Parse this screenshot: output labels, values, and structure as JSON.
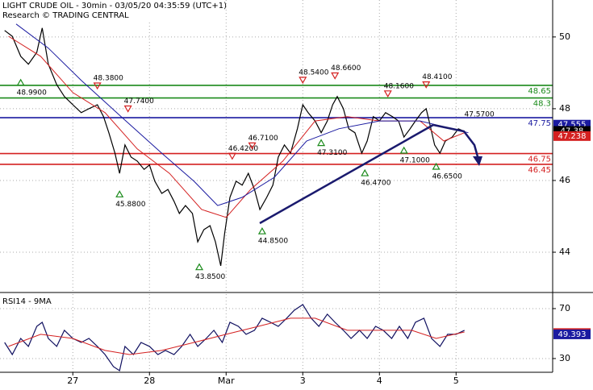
{
  "chart_data": [
    {
      "type": "line",
      "title": "LIGHT CRUDE OIL - 30min - 03/05/20 04:35:59 (UTC+1)",
      "subtitle": "Research © TRADING CENTRAL",
      "xlim": [
        -0.95,
        6.26
      ],
      "xticks": [
        {
          "value": 0,
          "label": "27"
        },
        {
          "value": 1,
          "label": "28"
        },
        {
          "value": 2,
          "label": "Mar"
        },
        {
          "value": 3,
          "label": "3"
        },
        {
          "value": 4,
          "label": "4"
        },
        {
          "value": 5,
          "label": "5"
        }
      ],
      "ylim": [
        42.9,
        51.03
      ],
      "yticks": [
        44,
        46,
        48,
        50
      ],
      "grid": true,
      "series": [
        {
          "color": "#000000",
          "x": [
            -0.89,
            -0.79,
            -0.68,
            -0.58,
            -0.47,
            -0.4,
            -0.32,
            -0.21,
            -0.11,
            0,
            0.11,
            0.21,
            0.32,
            0.4,
            0.47,
            0.55,
            0.61,
            0.68,
            0.76,
            0.84,
            0.93,
            1.0,
            1.07,
            1.16,
            1.24,
            1.32,
            1.39,
            1.47,
            1.56,
            1.63,
            1.71,
            1.79,
            1.86,
            1.93,
            1.98,
            2.05,
            2.13,
            2.21,
            2.29,
            2.37,
            2.44,
            2.53,
            2.61,
            2.68,
            2.76,
            2.84,
            2.93,
            3.0,
            3.07,
            3.16,
            3.24,
            3.32,
            3.39,
            3.45,
            3.53,
            3.6,
            3.68,
            3.77,
            3.84,
            3.92,
            4.0,
            4.08,
            4.17,
            4.25,
            4.32,
            4.4,
            4.47,
            4.55,
            4.61,
            4.66,
            4.72,
            4.79,
            4.86,
            4.95,
            5.03,
            5.11
          ],
          "values": [
            50.18,
            50.02,
            49.46,
            49.24,
            49.57,
            50.25,
            49.24,
            48.67,
            48.34,
            48.11,
            47.89,
            48.0,
            48.11,
            47.78,
            47.33,
            46.76,
            46.2,
            46.99,
            46.65,
            46.54,
            46.31,
            46.43,
            45.98,
            45.64,
            45.75,
            45.42,
            45.08,
            45.3,
            45.08,
            44.29,
            44.63,
            44.74,
            44.29,
            43.62,
            44.52,
            45.53,
            45.98,
            45.87,
            46.2,
            45.75,
            45.19,
            45.53,
            45.87,
            46.65,
            46.99,
            46.76,
            47.44,
            48.11,
            47.89,
            47.66,
            47.33,
            47.66,
            48.11,
            48.34,
            48.0,
            47.44,
            47.33,
            46.76,
            47.1,
            47.78,
            47.66,
            47.89,
            47.78,
            47.66,
            47.21,
            47.44,
            47.66,
            47.89,
            48.0,
            47.55,
            46.99,
            46.76,
            47.1,
            47.21,
            47.44,
            47.37
          ]
        },
        {
          "color": "#d42020",
          "x": [
            -0.84,
            -0.42,
            0,
            0.42,
            0.84,
            1.26,
            1.68,
            2.0,
            2.32,
            2.74,
            3.16,
            3.58,
            4.0,
            4.53,
            4.84,
            5.11
          ],
          "values": [
            50.02,
            49.46,
            48.45,
            47.89,
            46.88,
            46.2,
            45.19,
            44.97,
            45.75,
            46.54,
            47.66,
            47.78,
            47.66,
            47.66,
            47.1,
            47.33
          ]
        },
        {
          "color": "#1a1aa0",
          "x": [
            -0.74,
            -0.32,
            0.11,
            0.63,
            1.16,
            1.58,
            1.89,
            2.21,
            2.63,
            3.05,
            3.47,
            4.0,
            4.53,
            4.95,
            5.16
          ],
          "values": [
            50.36,
            49.69,
            48.79,
            47.78,
            46.76,
            45.98,
            45.3,
            45.53,
            46.09,
            47.1,
            47.44,
            47.66,
            47.66,
            47.44,
            47.33
          ]
        }
      ],
      "levels": [
        {
          "value": 48.65,
          "color": "#1a8a1a"
        },
        {
          "value": 48.3,
          "color": "#1a8a1a"
        },
        {
          "value": 47.75,
          "color": "#1a1aa0"
        },
        {
          "value": 46.75,
          "color": "#d42020"
        },
        {
          "value": 46.45,
          "color": "#d42020"
        }
      ],
      "tags": [
        {
          "value": 47.555,
          "color": "#1a1aa0"
        },
        {
          "value": 47.38,
          "color": "#000000"
        },
        {
          "value": 47.238,
          "color": "#d42020"
        }
      ],
      "annotations": [
        {
          "value": 48.99,
          "label": "48.9900",
          "x": -0.68,
          "marker": "up"
        },
        {
          "value": 48.38,
          "label": "48.3800",
          "x": 0.32,
          "marker": "down"
        },
        {
          "value": 47.74,
          "label": "47.7400",
          "x": 0.72,
          "marker": "down"
        },
        {
          "value": 45.88,
          "label": "45.8800",
          "x": 0.61,
          "marker": "up"
        },
        {
          "value": 43.85,
          "label": "43.8500",
          "x": 1.65,
          "marker": "up"
        },
        {
          "value": 46.42,
          "label": "46.4200",
          "x": 2.08,
          "marker": "down"
        },
        {
          "value": 46.71,
          "label": "46.7100",
          "x": 2.34,
          "marker": "down"
        },
        {
          "value": 44.85,
          "label": "44.8500",
          "x": 2.47,
          "marker": "up"
        },
        {
          "value": 48.54,
          "label": "48.5400",
          "x": 3.0,
          "marker": "down"
        },
        {
          "value": 48.66,
          "label": "48.6600",
          "x": 3.42,
          "marker": "down"
        },
        {
          "value": 47.31,
          "label": "47.3100",
          "x": 3.24,
          "marker": "up"
        },
        {
          "value": 48.16,
          "label": "48.1600",
          "x": 4.11,
          "marker": "down"
        },
        {
          "value": 46.47,
          "label": "46.4700",
          "x": 3.81,
          "marker": "up"
        },
        {
          "value": 48.41,
          "label": "48.4100",
          "x": 4.61,
          "marker": "down"
        },
        {
          "value": 47.1,
          "label": "47.1000",
          "x": 4.32,
          "marker": "up"
        },
        {
          "value": 46.65,
          "label": "46.6500",
          "x": 4.74,
          "marker": "up"
        },
        {
          "value": 47.57,
          "label": "47.5700",
          "x": 5.16,
          "marker": "none"
        }
      ]
    },
    {
      "type": "line",
      "title": "RSI14 - 9MA",
      "xlim": [
        -0.95,
        6.26
      ],
      "ylim": [
        19.0,
        81.6
      ],
      "yticks": [
        30,
        70
      ],
      "grid": true,
      "series": [
        {
          "color": "#101060",
          "x": [
            -0.89,
            -0.79,
            -0.68,
            -0.58,
            -0.47,
            -0.4,
            -0.32,
            -0.21,
            -0.11,
            0,
            0.11,
            0.21,
            0.32,
            0.42,
            0.53,
            0.61,
            0.68,
            0.79,
            0.89,
            1.0,
            1.11,
            1.21,
            1.32,
            1.42,
            1.53,
            1.63,
            1.74,
            1.84,
            1.95,
            2.05,
            2.16,
            2.26,
            2.37,
            2.47,
            2.58,
            2.68,
            2.79,
            2.89,
            3.0,
            3.11,
            3.21,
            3.32,
            3.42,
            3.53,
            3.63,
            3.74,
            3.84,
            3.95,
            4.05,
            4.16,
            4.26,
            4.37,
            4.47,
            4.58,
            4.68,
            4.79,
            4.89,
            5.0,
            5.11
          ],
          "values": [
            42.9,
            33.2,
            46.1,
            39.7,
            55.8,
            59.0,
            46.1,
            39.7,
            52.6,
            46.1,
            42.9,
            46.1,
            39.7,
            33.2,
            23.5,
            20.3,
            39.7,
            33.2,
            42.9,
            39.7,
            33.2,
            36.5,
            33.2,
            39.7,
            49.4,
            39.7,
            46.1,
            52.6,
            42.9,
            59.0,
            55.8,
            49.4,
            52.6,
            62.3,
            59.0,
            55.8,
            62.3,
            68.7,
            73.2,
            62.3,
            55.8,
            65.5,
            59.0,
            52.6,
            46.1,
            52.6,
            46.1,
            55.8,
            52.6,
            46.1,
            55.8,
            46.1,
            59.0,
            62.3,
            46.1,
            39.7,
            49.4,
            49.4,
            52.6
          ]
        },
        {
          "color": "#d42020",
          "x": [
            -0.84,
            -0.42,
            0,
            0.42,
            0.74,
            1.16,
            1.58,
            2.0,
            2.42,
            2.84,
            3.16,
            3.58,
            4.0,
            4.42,
            4.74,
            5.11
          ],
          "values": [
            39.7,
            49.4,
            46.1,
            36.5,
            33.2,
            36.5,
            42.9,
            49.4,
            55.8,
            62.3,
            62.3,
            52.6,
            52.6,
            52.6,
            46.1,
            51.3
          ]
        }
      ],
      "tags": [
        {
          "value": 50.397,
          "color": "#d42020"
        },
        {
          "value": 49.393,
          "color": "#1a1aa0"
        }
      ]
    }
  ]
}
